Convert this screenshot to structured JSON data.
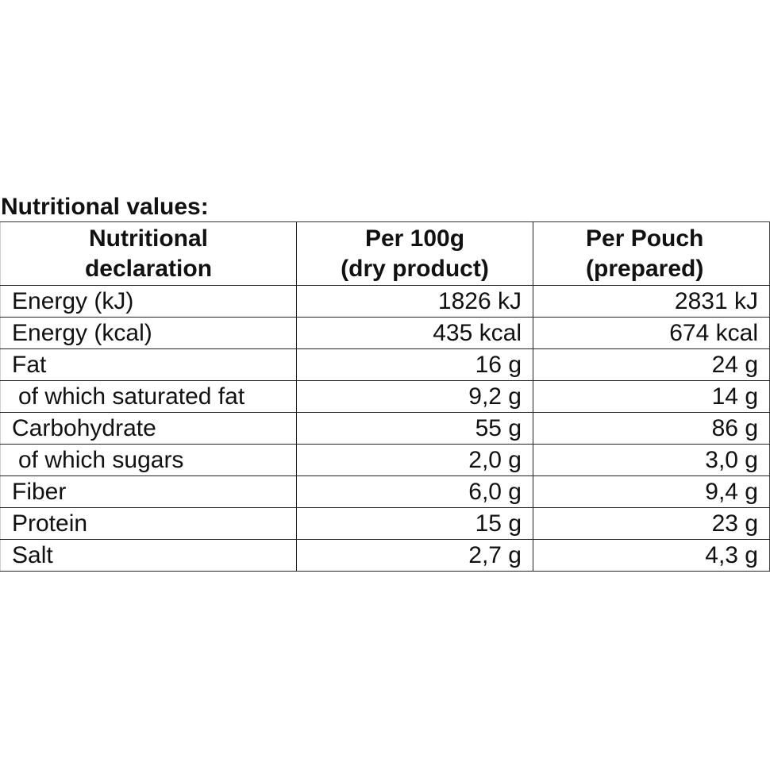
{
  "title": "Nutritional values:",
  "headers": {
    "col1_line1": "Nutritional",
    "col1_line2": "declaration",
    "col2_line1": "Per 100g",
    "col2_line2": "(dry product)",
    "col3_line1": "Per Pouch",
    "col3_line2": "(prepared)"
  },
  "rows": [
    {
      "label": "Energy (kJ)",
      "per100g": "1826 kJ",
      "perPouch": "2831 kJ"
    },
    {
      "label": "Energy (kcal)",
      "per100g": "435 kcal",
      "perPouch": "674 kcal"
    },
    {
      "label": "Fat",
      "per100g": "16 g",
      "perPouch": "24 g"
    },
    {
      "label": "of which saturated fat",
      "per100g": "9,2 g",
      "perPouch": "14 g"
    },
    {
      "label": "Carbohydrate",
      "per100g": "55 g",
      "perPouch": "86 g"
    },
    {
      "label": "of which sugars",
      "per100g": "2,0 g",
      "perPouch": "3,0 g"
    },
    {
      "label": "Fiber",
      "per100g": "6,0 g",
      "perPouch": "9,4 g"
    },
    {
      "label": "Protein",
      "per100g": "15 g",
      "perPouch": "23 g"
    },
    {
      "label": "Salt",
      "per100g": "2,7 g",
      "perPouch": "4,3 g"
    }
  ]
}
